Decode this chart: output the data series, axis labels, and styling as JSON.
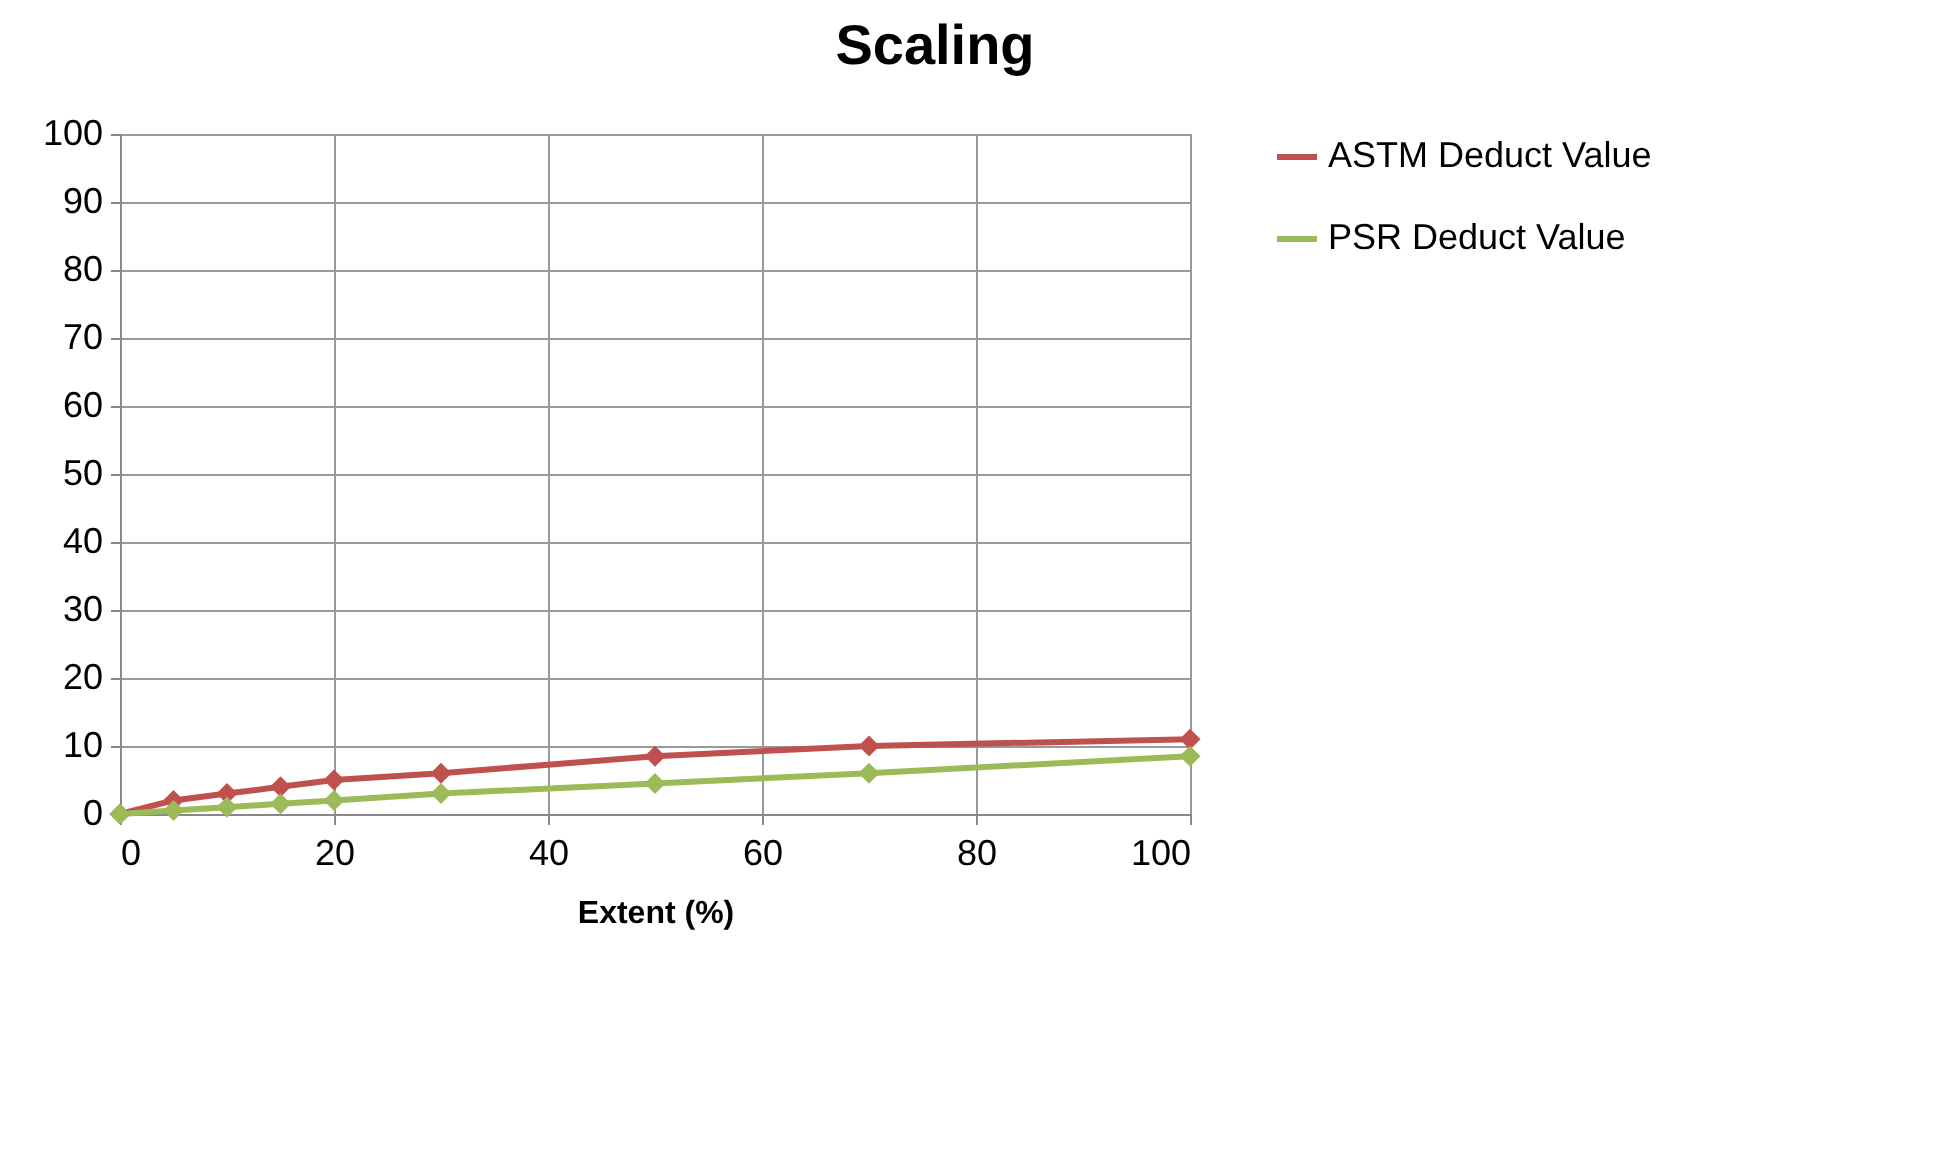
{
  "chart_data": {
    "type": "line",
    "title": "Scaling",
    "xlabel": "Extent (%)",
    "x": [
      0,
      5,
      10,
      15,
      20,
      30,
      50,
      70,
      100
    ],
    "series": [
      {
        "name": "ASTM Deduct Value",
        "color": "#c0504d",
        "values": [
          0,
          2,
          3,
          4,
          5,
          6,
          8.5,
          10,
          11
        ]
      },
      {
        "name": "PSR Deduct Value",
        "color": "#9bbb59",
        "values": [
          0,
          0.5,
          1,
          1.5,
          2,
          3,
          4.5,
          6,
          8.5
        ]
      }
    ],
    "xlim": [
      0,
      100
    ],
    "xticks": [
      0,
      20,
      40,
      60,
      80,
      100
    ],
    "ylim": [
      0,
      100
    ],
    "yticks": [
      0,
      10,
      20,
      30,
      40,
      50,
      60,
      70,
      80,
      90,
      100
    ],
    "grid": true,
    "legend": "right",
    "marker": "diamond"
  }
}
